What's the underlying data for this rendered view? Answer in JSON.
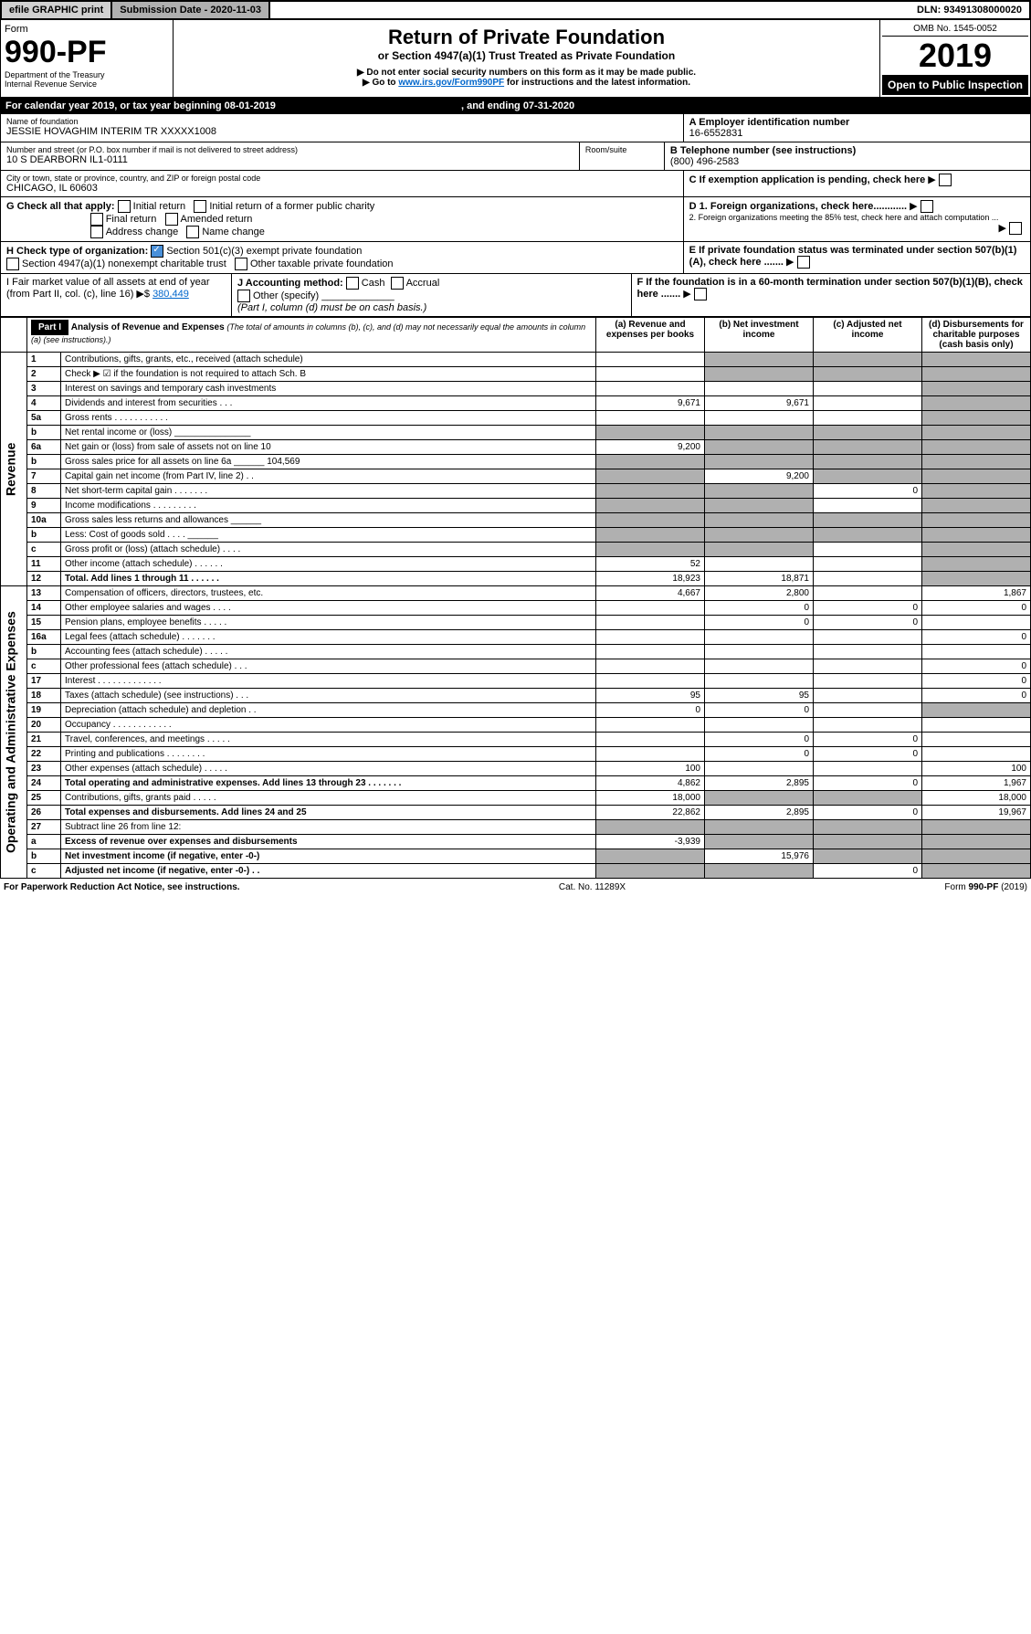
{
  "topbar": {
    "efile": "efile GRAPHIC print",
    "subdate_label": "Submission Date - 2020-11-03",
    "dln": "DLN: 93491308000020"
  },
  "header": {
    "form_word": "Form",
    "form_no": "990-PF",
    "dept": "Department of the Treasury",
    "irs": "Internal Revenue Service",
    "title": "Return of Private Foundation",
    "subtitle": "or Section 4947(a)(1) Trust Treated as Private Foundation",
    "note1": "▶ Do not enter social security numbers on this form as it may be made public.",
    "note2": "▶ Go to www.irs.gov/Form990PF for instructions and the latest information.",
    "omb": "OMB No. 1545-0052",
    "year": "2019",
    "open": "Open to Public Inspection"
  },
  "cal": {
    "text": "For calendar year 2019, or tax year beginning 08-01-2019",
    "ending": ", and ending 07-31-2020"
  },
  "id": {
    "name_label": "Name of foundation",
    "name": "JESSIE HOVAGHIM INTERIM TR XXXXX1008",
    "addr_label": "Number and street (or P.O. box number if mail is not delivered to street address)",
    "room": "Room/suite",
    "addr": "10 S DEARBORN IL1-0111",
    "city_label": "City or town, state or province, country, and ZIP or foreign postal code",
    "city": "CHICAGO, IL  60603",
    "a_label": "A Employer identification number",
    "a": "16-6552831",
    "b_label": "B Telephone number (see instructions)",
    "b": "(800) 496-2583",
    "c": "C If exemption application is pending, check here",
    "d1": "D 1. Foreign organizations, check here............",
    "d2": "2. Foreign organizations meeting the 85% test, check here and attach computation ...",
    "e": "E If private foundation status was terminated under section 507(b)(1)(A), check here .......",
    "f": "F If the foundation is in a 60-month termination under section 507(b)(1)(B), check here ......."
  },
  "g": {
    "label": "G Check all that apply:",
    "o1": "Initial return",
    "o2": "Initial return of a former public charity",
    "o3": "Final return",
    "o4": "Amended return",
    "o5": "Address change",
    "o6": "Name change"
  },
  "h": {
    "label": "H Check type of organization:",
    "o1": "Section 501(c)(3) exempt private foundation",
    "o2": "Section 4947(a)(1) nonexempt charitable trust",
    "o3": "Other taxable private foundation"
  },
  "i": {
    "label": "I Fair market value of all assets at end of year (from Part II, col. (c), line 16) ▶$",
    "val": "380,449"
  },
  "j": {
    "label": "J Accounting method:",
    "o1": "Cash",
    "o2": "Accrual",
    "o3": "Other (specify)",
    "note": "(Part I, column (d) must be on cash basis.)"
  },
  "part1": {
    "title": "Part I",
    "heading": "Analysis of Revenue and Expenses",
    "heading_note": "(The total of amounts in columns (b), (c), and (d) may not necessarily equal the amounts in column (a) (see instructions).)",
    "col_a": "(a) Revenue and expenses per books",
    "col_b": "(b) Net investment income",
    "col_c": "(c) Adjusted net income",
    "col_d": "(d) Disbursements for charitable purposes (cash basis only)",
    "revenue_label": "Revenue",
    "expenses_label": "Operating and Administrative Expenses",
    "rows": [
      {
        "n": "1",
        "t": "Contributions, gifts, grants, etc., received (attach schedule)",
        "a": "",
        "b": "",
        "c": "",
        "d": "",
        "sb": true,
        "sc": true,
        "sd": true
      },
      {
        "n": "2",
        "t": "Check ▶ ☑ if the foundation is not required to attach Sch. B",
        "a": "",
        "b": "",
        "c": "",
        "d": "",
        "sb": true,
        "sc": true,
        "sd": true
      },
      {
        "n": "3",
        "t": "Interest on savings and temporary cash investments",
        "a": "",
        "b": "",
        "c": "",
        "d": "",
        "sd": true
      },
      {
        "n": "4",
        "t": "Dividends and interest from securities   .  .  .",
        "a": "9,671",
        "b": "9,671",
        "c": "",
        "d": "",
        "sd": true
      },
      {
        "n": "5a",
        "t": "Gross rents   .  .  .  .  .  .  .  .  .  .  .",
        "a": "",
        "b": "",
        "c": "",
        "d": "",
        "sd": true
      },
      {
        "n": "b",
        "t": "Net rental income or (loss)  _______________",
        "a": "",
        "b": "",
        "c": "",
        "d": "",
        "sa": true,
        "sb": true,
        "sc": true,
        "sd": true
      },
      {
        "n": "6a",
        "t": "Net gain or (loss) from sale of assets not on line 10",
        "a": "9,200",
        "b": "",
        "c": "",
        "d": "",
        "sb": true,
        "sc": true,
        "sd": true
      },
      {
        "n": "b",
        "t": "Gross sales price for all assets on line 6a ______ 104,569",
        "a": "",
        "b": "",
        "c": "",
        "d": "",
        "sa": true,
        "sb": true,
        "sc": true,
        "sd": true
      },
      {
        "n": "7",
        "t": "Capital gain net income (from Part IV, line 2)   .  .",
        "a": "",
        "b": "9,200",
        "c": "",
        "d": "",
        "sa": true,
        "sc": true,
        "sd": true
      },
      {
        "n": "8",
        "t": "Net short-term capital gain   .  .  .  .  .  .  .",
        "a": "",
        "b": "",
        "c": "0",
        "d": "",
        "sa": true,
        "sb": true,
        "sd": true
      },
      {
        "n": "9",
        "t": "Income modifications   .  .  .  .  .  .  .  .  .",
        "a": "",
        "b": "",
        "c": "",
        "d": "",
        "sa": true,
        "sb": true,
        "sd": true
      },
      {
        "n": "10a",
        "t": "Gross sales less returns and allowances  ______",
        "a": "",
        "b": "",
        "c": "",
        "d": "",
        "sa": true,
        "sb": true,
        "sc": true,
        "sd": true
      },
      {
        "n": "b",
        "t": "Less: Cost of goods sold   .  .  .  .  ______",
        "a": "",
        "b": "",
        "c": "",
        "d": "",
        "sa": true,
        "sb": true,
        "sc": true,
        "sd": true
      },
      {
        "n": "c",
        "t": "Gross profit or (loss) (attach schedule)   .  .  .  .",
        "a": "",
        "b": "",
        "c": "",
        "d": "",
        "sa": true,
        "sb": true,
        "sd": true
      },
      {
        "n": "11",
        "t": "Other income (attach schedule)   .  .  .  .  .  .",
        "a": "52",
        "b": "",
        "c": "",
        "d": "",
        "sd": true
      },
      {
        "n": "12",
        "t": "Total. Add lines 1 through 11   .  .  .  .  .  .",
        "a": "18,923",
        "b": "18,871",
        "c": "",
        "d": "",
        "bold": true,
        "sd": true
      },
      {
        "n": "13",
        "t": "Compensation of officers, directors, trustees, etc.",
        "a": "4,667",
        "b": "2,800",
        "c": "",
        "d": "1,867"
      },
      {
        "n": "14",
        "t": "Other employee salaries and wages   .  .  .  .",
        "a": "",
        "b": "0",
        "c": "0",
        "d": "0"
      },
      {
        "n": "15",
        "t": "Pension plans, employee benefits   .  .  .  .  .",
        "a": "",
        "b": "0",
        "c": "0",
        "d": ""
      },
      {
        "n": "16a",
        "t": "Legal fees (attach schedule)   .  .  .  .  .  .  .",
        "a": "",
        "b": "",
        "c": "",
        "d": "0"
      },
      {
        "n": "b",
        "t": "Accounting fees (attach schedule)   .  .  .  .  .",
        "a": "",
        "b": "",
        "c": "",
        "d": ""
      },
      {
        "n": "c",
        "t": "Other professional fees (attach schedule)   .  .  .",
        "a": "",
        "b": "",
        "c": "",
        "d": "0"
      },
      {
        "n": "17",
        "t": "Interest   .  .  .  .  .  .  .  .  .  .  .  .  .",
        "a": "",
        "b": "",
        "c": "",
        "d": "0"
      },
      {
        "n": "18",
        "t": "Taxes (attach schedule) (see instructions)   .  .  .",
        "a": "95",
        "b": "95",
        "c": "",
        "d": "0"
      },
      {
        "n": "19",
        "t": "Depreciation (attach schedule) and depletion   .  .",
        "a": "0",
        "b": "0",
        "c": "",
        "d": "",
        "sd": true
      },
      {
        "n": "20",
        "t": "Occupancy   .  .  .  .  .  .  .  .  .  .  .  .",
        "a": "",
        "b": "",
        "c": "",
        "d": ""
      },
      {
        "n": "21",
        "t": "Travel, conferences, and meetings   .  .  .  .  .",
        "a": "",
        "b": "0",
        "c": "0",
        "d": ""
      },
      {
        "n": "22",
        "t": "Printing and publications   .  .  .  .  .  .  .  .",
        "a": "",
        "b": "0",
        "c": "0",
        "d": ""
      },
      {
        "n": "23",
        "t": "Other expenses (attach schedule)   .  .  .  .  .",
        "a": "100",
        "b": "",
        "c": "",
        "d": "100"
      },
      {
        "n": "24",
        "t": "Total operating and administrative expenses. Add lines 13 through 23   .  .  .  .  .  .  .",
        "a": "4,862",
        "b": "2,895",
        "c": "0",
        "d": "1,967",
        "bold": true
      },
      {
        "n": "25",
        "t": "Contributions, gifts, grants paid   .  .  .  .  .",
        "a": "18,000",
        "b": "",
        "c": "",
        "d": "18,000",
        "sb": true,
        "sc": true
      },
      {
        "n": "26",
        "t": "Total expenses and disbursements. Add lines 24 and 25",
        "a": "22,862",
        "b": "2,895",
        "c": "0",
        "d": "19,967",
        "bold": true
      },
      {
        "n": "27",
        "t": "Subtract line 26 from line 12:",
        "a": "",
        "b": "",
        "c": "",
        "d": "",
        "sa": true,
        "sb": true,
        "sc": true,
        "sd": true
      },
      {
        "n": "a",
        "t": "Excess of revenue over expenses and disbursements",
        "a": "-3,939",
        "b": "",
        "c": "",
        "d": "",
        "bold": true,
        "sb": true,
        "sc": true,
        "sd": true
      },
      {
        "n": "b",
        "t": "Net investment income (if negative, enter -0-)",
        "a": "",
        "b": "15,976",
        "c": "",
        "d": "",
        "bold": true,
        "sa": true,
        "sc": true,
        "sd": true
      },
      {
        "n": "c",
        "t": "Adjusted net income (if negative, enter -0-)   .  .",
        "a": "",
        "b": "",
        "c": "0",
        "d": "",
        "bold": true,
        "sa": true,
        "sb": true,
        "sd": true
      }
    ]
  },
  "footer": {
    "l": "For Paperwork Reduction Act Notice, see instructions.",
    "c": "Cat. No. 11289X",
    "r": "Form 990-PF (2019)"
  }
}
